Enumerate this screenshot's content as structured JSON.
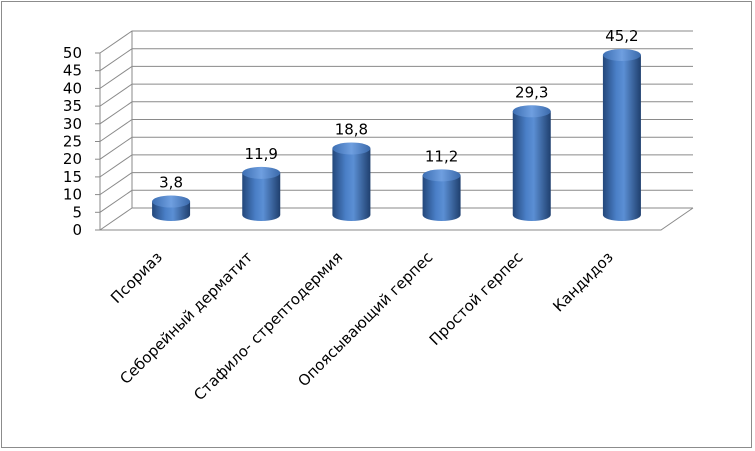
{
  "chart_data": {
    "type": "bar",
    "style": "3d-cylinder",
    "categories": [
      "Псориаз",
      "Себорейный дерматит",
      "Стафило- стрептодермия",
      "Опоясывающий герпес",
      "Простой герпес",
      "Кандидоз"
    ],
    "values": [
      3.8,
      11.9,
      18.8,
      11.2,
      29.3,
      45.2
    ],
    "data_labels": [
      "3,8",
      "11,9",
      "18,8",
      "11,2",
      "29,3",
      "45,2"
    ],
    "y_ticks": [
      "0",
      "5",
      "10",
      "15",
      "20",
      "25",
      "30",
      "35",
      "40",
      "45",
      "50"
    ],
    "ylim": [
      0,
      50
    ],
    "grid": true,
    "legend": "none",
    "title": "",
    "xlabel": "",
    "ylabel": "",
    "bar_color": "#4f81bd"
  }
}
